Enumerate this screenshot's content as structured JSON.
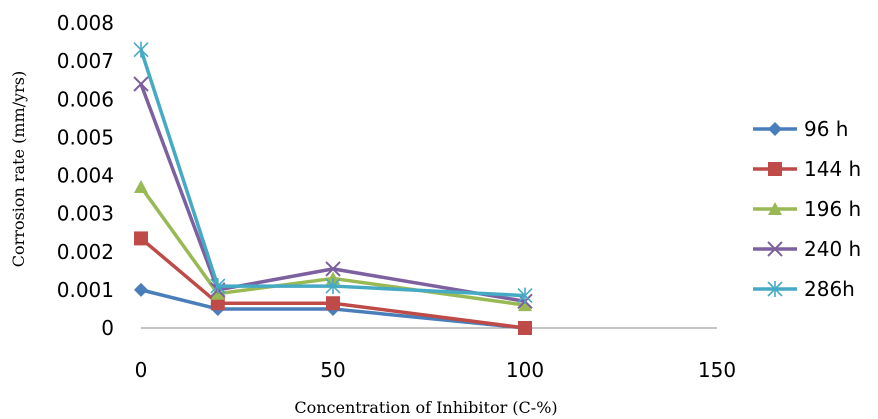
{
  "chart_data": {
    "type": "line",
    "xlabel": "Concentration of Inhibitor (C-%)",
    "ylabel": "Corrosion rate (mm/yrs)",
    "xlim": [
      0,
      150
    ],
    "ylim": [
      0,
      0.008
    ],
    "xticks": [
      "0",
      "50",
      "100",
      "150"
    ],
    "yticks": [
      "0",
      "0.001",
      "0.002",
      "0.003",
      "0.004",
      "0.005",
      "0.006",
      "0.007",
      "0.008"
    ],
    "x": [
      0,
      20,
      50,
      100
    ],
    "grid": false,
    "legend_position": "right",
    "series": [
      {
        "name": "96 h",
        "values": [
          0.001,
          0.0005,
          0.0005,
          0.0
        ],
        "color": "#4A7EBB",
        "marker": "diamond"
      },
      {
        "name": "144 h",
        "values": [
          0.00235,
          0.00065,
          0.00065,
          0.0
        ],
        "color": "#BE4B48",
        "marker": "square"
      },
      {
        "name": "196 h",
        "values": [
          0.0037,
          0.0009,
          0.0013,
          0.0006
        ],
        "color": "#98B954",
        "marker": "triangle"
      },
      {
        "name": "240 h",
        "values": [
          0.0064,
          0.001,
          0.00155,
          0.0007
        ],
        "color": "#7D60A0",
        "marker": "x"
      },
      {
        "name": "286h",
        "values": [
          0.0073,
          0.0011,
          0.0011,
          0.00085
        ],
        "color": "#46AAC5",
        "marker": "star"
      }
    ]
  }
}
